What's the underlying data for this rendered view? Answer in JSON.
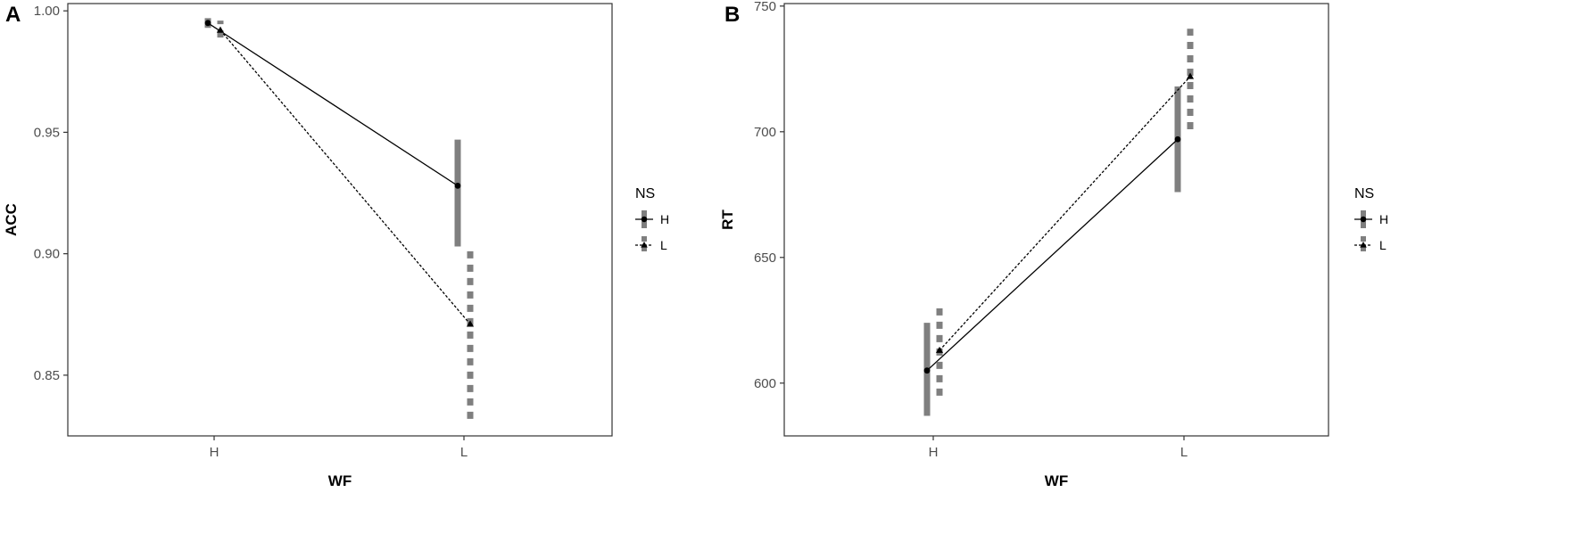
{
  "chart_data": [
    {
      "type": "line",
      "panel_label": "A",
      "xlabel": "WF",
      "ylabel": "ACC",
      "categories": [
        "H",
        "L"
      ],
      "ylim": [
        0.825,
        1.003
      ],
      "yticks": [
        0.85,
        0.9,
        0.95,
        1.0
      ],
      "ytick_labels": [
        "0.85",
        "0.90",
        "0.95",
        "1.00"
      ],
      "grid": false,
      "legend": {
        "title": "NS",
        "placement": "right"
      },
      "series": [
        {
          "name": "H",
          "line_style": "solid",
          "marker": "circle",
          "errorbar_style": "solid",
          "values": [
            0.995,
            0.928
          ],
          "lower": [
            0.993,
            0.903
          ],
          "upper": [
            0.997,
            0.947
          ]
        },
        {
          "name": "L",
          "line_style": "dashed",
          "marker": "triangle",
          "errorbar_style": "dashed",
          "values": [
            0.992,
            0.871
          ],
          "lower": [
            0.989,
            0.832
          ],
          "upper": [
            0.996,
            0.902
          ]
        }
      ]
    },
    {
      "type": "line",
      "panel_label": "B",
      "xlabel": "WF",
      "ylabel": "RT",
      "categories": [
        "H",
        "L"
      ],
      "ylim": [
        579,
        751
      ],
      "yticks": [
        600,
        650,
        700,
        750
      ],
      "ytick_labels": [
        "600",
        "650",
        "700",
        "750"
      ],
      "grid": false,
      "legend": {
        "title": "NS",
        "placement": "right"
      },
      "series": [
        {
          "name": "H",
          "line_style": "solid",
          "marker": "circle",
          "errorbar_style": "solid",
          "values": [
            605,
            697
          ],
          "lower": [
            587,
            676
          ],
          "upper": [
            624,
            718
          ]
        },
        {
          "name": "L",
          "line_style": "dashed",
          "marker": "triangle",
          "errorbar_style": "dashed",
          "values": [
            613,
            722
          ],
          "lower": [
            595,
            701
          ],
          "upper": [
            631,
            741
          ]
        }
      ]
    }
  ]
}
